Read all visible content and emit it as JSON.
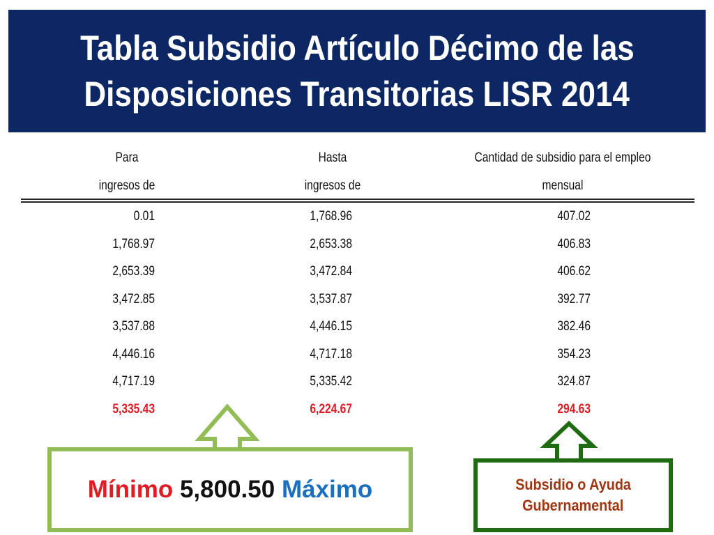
{
  "title": {
    "line1": "Tabla Subsidio Artículo Décimo de las",
    "line2": "Disposiciones Transitorias LISR 2014"
  },
  "table": {
    "headers": [
      {
        "line1": "Para",
        "line2": "ingresos de"
      },
      {
        "line1": "Hasta",
        "line2": "ingresos de"
      },
      {
        "line1": "Cantidad de subsidio para el empleo",
        "line2": "mensual"
      }
    ],
    "rows": [
      [
        "0.01",
        "1,768.96",
        "407.02"
      ],
      [
        "1,768.97",
        "2,653.38",
        "406.83"
      ],
      [
        "2,653.39",
        "3,472.84",
        "406.62"
      ],
      [
        "3,472.85",
        "3,537.87",
        "392.77"
      ],
      [
        "3,537.88",
        "4,446.15",
        "382.46"
      ],
      [
        "4,446.16",
        "4,717.18",
        "354.23"
      ],
      [
        "4,717.19",
        "5,335.42",
        "324.87"
      ],
      [
        "5,335.43",
        "6,224.67",
        "294.63"
      ]
    ],
    "highlight_color": "#e11b22"
  },
  "callout_left": {
    "min_label": "Mínimo",
    "value": "5,800.50",
    "max_label": "Máximo",
    "border_color": "#92bc55"
  },
  "callout_right": {
    "line1": "Subsidio o Ayuda",
    "line2": "Gubernamental",
    "border_color": "#1f6b12"
  },
  "colors": {
    "banner": "#0c2763",
    "red": "#e11b22",
    "blue": "#1b6fc1",
    "callout_text": "#a0360f"
  }
}
